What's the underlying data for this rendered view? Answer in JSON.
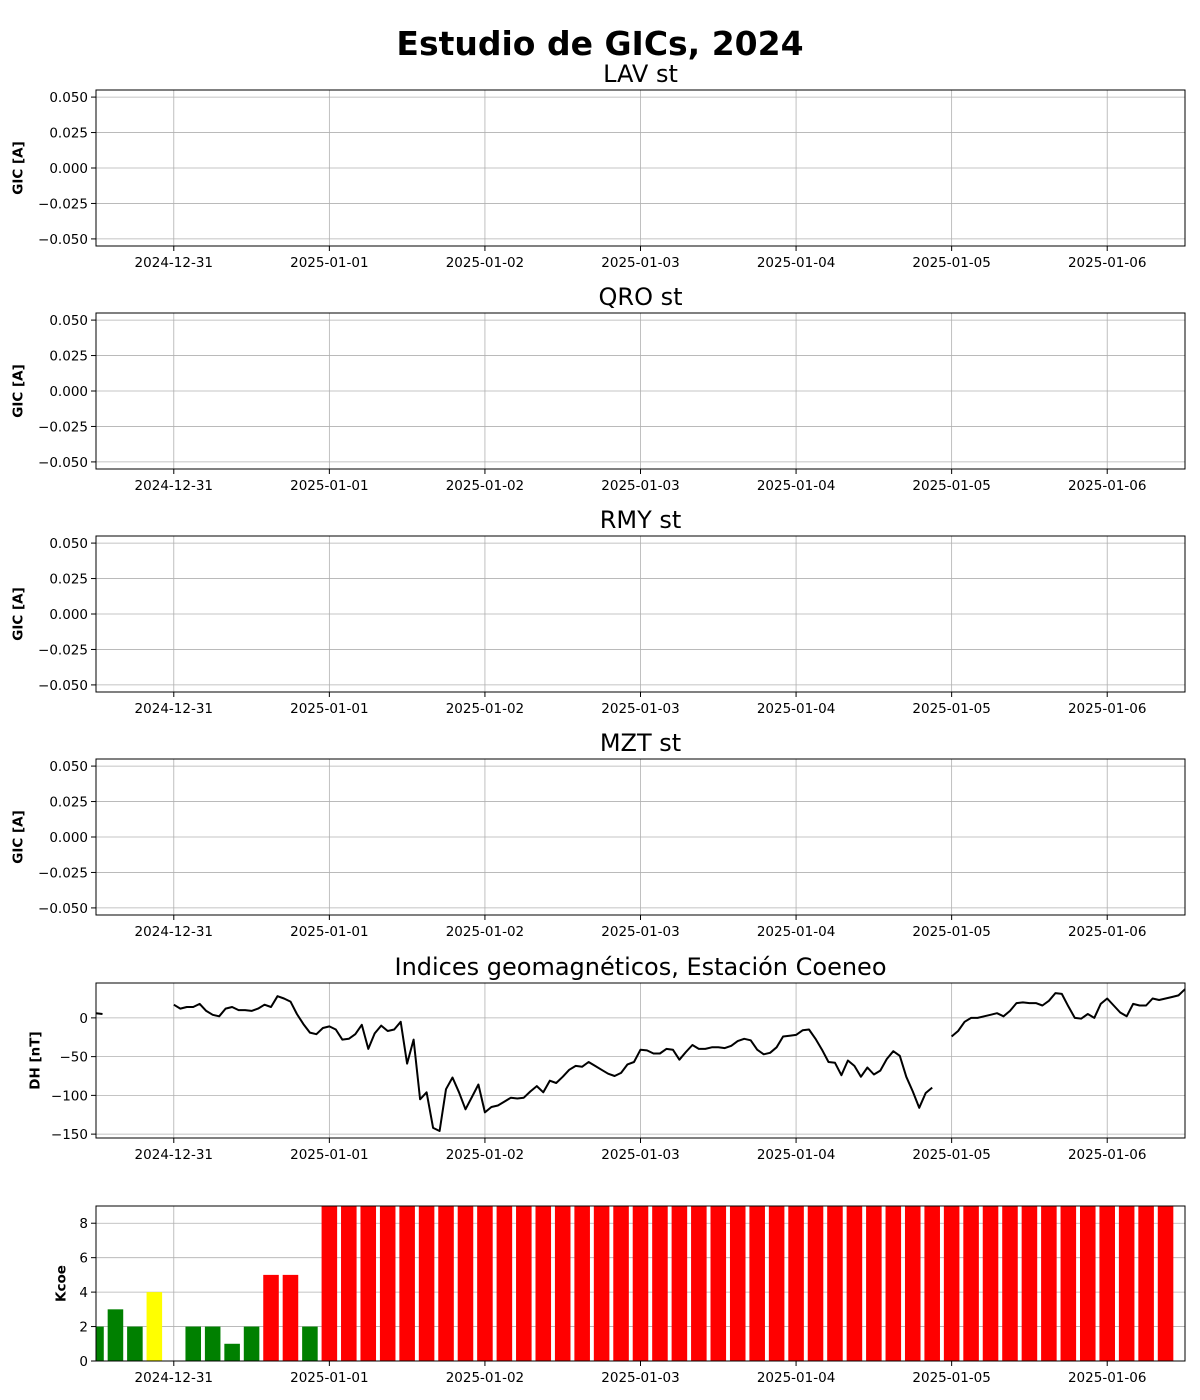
{
  "figure": {
    "suptitle": "Estudio de GICs, 2024"
  },
  "chart_data": [
    {
      "type": "line",
      "title": "LAV st",
      "ylabel": "GIC [A]",
      "xlabel": "",
      "x_ticks": [
        "2024-12-31",
        "2025-01-01",
        "2025-01-02",
        "2025-01-03",
        "2025-01-04",
        "2025-01-05",
        "2025-01-06"
      ],
      "xlim": [
        "2024-12-30 12:00",
        "2025-01-06 12:00"
      ],
      "y_ticks": [
        "0.050",
        "0.025",
        "0.000",
        "−0.025",
        "−0.050"
      ],
      "ylim": [
        -0.055,
        0.055
      ],
      "grid": true,
      "series": []
    },
    {
      "type": "line",
      "title": "QRO st",
      "ylabel": "GIC [A]",
      "xlabel": "",
      "x_ticks": [
        "2024-12-31",
        "2025-01-01",
        "2025-01-02",
        "2025-01-03",
        "2025-01-04",
        "2025-01-05",
        "2025-01-06"
      ],
      "xlim": [
        "2024-12-30 12:00",
        "2025-01-06 12:00"
      ],
      "y_ticks": [
        "0.050",
        "0.025",
        "0.000",
        "−0.025",
        "−0.050"
      ],
      "ylim": [
        -0.055,
        0.055
      ],
      "grid": true,
      "series": []
    },
    {
      "type": "line",
      "title": "RMY st",
      "ylabel": "GIC [A]",
      "xlabel": "",
      "x_ticks": [
        "2024-12-31",
        "2025-01-01",
        "2025-01-02",
        "2025-01-03",
        "2025-01-04",
        "2025-01-05",
        "2025-01-06"
      ],
      "xlim": [
        "2024-12-30 12:00",
        "2025-01-06 12:00"
      ],
      "y_ticks": [
        "0.050",
        "0.025",
        "0.000",
        "−0.025",
        "−0.050"
      ],
      "ylim": [
        -0.055,
        0.055
      ],
      "grid": true,
      "series": []
    },
    {
      "type": "line",
      "title": "MZT st",
      "ylabel": "GIC [A]",
      "xlabel": "",
      "x_ticks": [
        "2024-12-31",
        "2025-01-01",
        "2025-01-02",
        "2025-01-03",
        "2025-01-04",
        "2025-01-05",
        "2025-01-06"
      ],
      "xlim": [
        "2024-12-30 12:00",
        "2025-01-06 12:00"
      ],
      "y_ticks": [
        "0.050",
        "0.025",
        "0.000",
        "−0.025",
        "−0.050"
      ],
      "ylim": [
        -0.055,
        0.055
      ],
      "grid": true,
      "series": []
    },
    {
      "type": "line",
      "title": "Indices geomagnéticos, Estación Coeneo",
      "ylabel": "DH [nT]",
      "xlabel": "",
      "x_ticks": [
        "2024-12-31",
        "2025-01-01",
        "2025-01-02",
        "2025-01-03",
        "2025-01-04",
        "2025-01-05",
        "2025-01-06"
      ],
      "xlim": [
        "2024-12-30 12:00",
        "2025-01-06 12:00"
      ],
      "y_ticks": [
        "0",
        "−50",
        "−100",
        "−150"
      ],
      "ylim": [
        -155,
        45
      ],
      "grid": true,
      "color": "#000000",
      "series": [
        {
          "segments": [
            [
              [
                "2024-12-30 12:00",
                6
              ],
              [
                "2024-12-30 13:00",
                5
              ]
            ],
            [
              [
                "2024-12-31 00:00",
                17
              ],
              [
                "2024-12-31 01:00",
                12
              ],
              [
                "2024-12-31 02:00",
                14
              ],
              [
                "2024-12-31 03:00",
                14
              ],
              [
                "2024-12-31 04:00",
                18
              ],
              [
                "2024-12-31 05:00",
                9
              ],
              [
                "2024-12-31 06:00",
                4
              ],
              [
                "2024-12-31 07:00",
                2
              ],
              [
                "2024-12-31 08:00",
                12
              ],
              [
                "2024-12-31 09:00",
                14
              ],
              [
                "2024-12-31 10:00",
                10
              ],
              [
                "2024-12-31 11:00",
                10
              ],
              [
                "2024-12-31 12:00",
                9
              ],
              [
                "2024-12-31 13:00",
                12
              ],
              [
                "2024-12-31 14:00",
                17
              ],
              [
                "2024-12-31 15:00",
                14
              ],
              [
                "2024-12-31 16:00",
                28
              ],
              [
                "2024-12-31 17:00",
                25
              ],
              [
                "2024-12-31 18:00",
                21
              ],
              [
                "2024-12-31 19:00",
                5
              ],
              [
                "2024-12-31 20:00",
                -8
              ],
              [
                "2024-12-31 21:00",
                -19
              ],
              [
                "2024-12-31 22:00",
                -21
              ],
              [
                "2024-12-31 23:00",
                -13
              ],
              [
                "2025-01-01 00:00",
                -11
              ],
              [
                "2025-01-01 01:00",
                -15
              ],
              [
                "2025-01-01 02:00",
                -28
              ],
              [
                "2025-01-01 03:00",
                -27
              ],
              [
                "2025-01-01 04:00",
                -21
              ],
              [
                "2025-01-01 05:00",
                -9
              ],
              [
                "2025-01-01 06:00",
                -40
              ],
              [
                "2025-01-01 07:00",
                -20
              ],
              [
                "2025-01-01 08:00",
                -10
              ],
              [
                "2025-01-01 09:00",
                -17
              ],
              [
                "2025-01-01 10:00",
                -15
              ],
              [
                "2025-01-01 11:00",
                -5
              ],
              [
                "2025-01-01 12:00",
                -59
              ],
              [
                "2025-01-01 13:00",
                -28
              ],
              [
                "2025-01-01 14:00",
                -105
              ],
              [
                "2025-01-01 15:00",
                -96
              ],
              [
                "2025-01-01 16:00",
                -142
              ],
              [
                "2025-01-01 17:00",
                -146
              ],
              [
                "2025-01-01 18:00",
                -92
              ],
              [
                "2025-01-01 19:00",
                -77
              ],
              [
                "2025-01-01 20:00",
                -96
              ],
              [
                "2025-01-01 21:00",
                -118
              ],
              [
                "2025-01-01 22:00",
                -102
              ],
              [
                "2025-01-01 23:00",
                -86
              ],
              [
                "2025-01-02 00:00",
                -122
              ],
              [
                "2025-01-02 01:00",
                -115
              ],
              [
                "2025-01-02 02:00",
                -113
              ],
              [
                "2025-01-02 03:00",
                -108
              ],
              [
                "2025-01-02 04:00",
                -103
              ],
              [
                "2025-01-02 05:00",
                -104
              ],
              [
                "2025-01-02 06:00",
                -103
              ],
              [
                "2025-01-02 07:00",
                -95
              ],
              [
                "2025-01-02 08:00",
                -88
              ],
              [
                "2025-01-02 09:00",
                -96
              ],
              [
                "2025-01-02 10:00",
                -81
              ],
              [
                "2025-01-02 11:00",
                -84
              ],
              [
                "2025-01-02 12:00",
                -76
              ],
              [
                "2025-01-02 13:00",
                -67
              ],
              [
                "2025-01-02 14:00",
                -62
              ],
              [
                "2025-01-02 15:00",
                -63
              ],
              [
                "2025-01-02 16:00",
                -57
              ],
              [
                "2025-01-02 17:00",
                -62
              ],
              [
                "2025-01-02 18:00",
                -67
              ],
              [
                "2025-01-02 19:00",
                -72
              ],
              [
                "2025-01-02 20:00",
                -75
              ],
              [
                "2025-01-02 21:00",
                -71
              ],
              [
                "2025-01-02 22:00",
                -60
              ],
              [
                "2025-01-02 23:00",
                -57
              ],
              [
                "2025-01-03 00:00",
                -41
              ],
              [
                "2025-01-03 01:00",
                -42
              ],
              [
                "2025-01-03 02:00",
                -46
              ],
              [
                "2025-01-03 03:00",
                -46
              ],
              [
                "2025-01-03 04:00",
                -40
              ],
              [
                "2025-01-03 05:00",
                -41
              ],
              [
                "2025-01-03 06:00",
                -54
              ],
              [
                "2025-01-03 07:00",
                -44
              ],
              [
                "2025-01-03 08:00",
                -35
              ],
              [
                "2025-01-03 09:00",
                -40
              ],
              [
                "2025-01-03 10:00",
                -40
              ],
              [
                "2025-01-03 11:00",
                -38
              ],
              [
                "2025-01-03 12:00",
                -38
              ],
              [
                "2025-01-03 13:00",
                -39
              ],
              [
                "2025-01-03 14:00",
                -36
              ],
              [
                "2025-01-03 15:00",
                -30
              ],
              [
                "2025-01-03 16:00",
                -27
              ],
              [
                "2025-01-03 17:00",
                -29
              ],
              [
                "2025-01-03 18:00",
                -41
              ],
              [
                "2025-01-03 19:00",
                -47
              ],
              [
                "2025-01-03 20:00",
                -45
              ],
              [
                "2025-01-03 21:00",
                -38
              ],
              [
                "2025-01-03 22:00",
                -24
              ],
              [
                "2025-01-03 23:00",
                -23
              ],
              [
                "2025-01-04 00:00",
                -22
              ],
              [
                "2025-01-04 01:00",
                -16
              ],
              [
                "2025-01-04 02:00",
                -15
              ],
              [
                "2025-01-04 03:00",
                -27
              ],
              [
                "2025-01-04 04:00",
                -41
              ],
              [
                "2025-01-04 05:00",
                -57
              ],
              [
                "2025-01-04 06:00",
                -58
              ],
              [
                "2025-01-04 07:00",
                -74
              ],
              [
                "2025-01-04 08:00",
                -55
              ],
              [
                "2025-01-04 09:00",
                -62
              ],
              [
                "2025-01-04 10:00",
                -76
              ],
              [
                "2025-01-04 11:00",
                -64
              ],
              [
                "2025-01-04 12:00",
                -73
              ],
              [
                "2025-01-04 13:00",
                -68
              ],
              [
                "2025-01-04 14:00",
                -53
              ],
              [
                "2025-01-04 15:00",
                -43
              ],
              [
                "2025-01-04 16:00",
                -49
              ],
              [
                "2025-01-04 17:00",
                -76
              ],
              [
                "2025-01-04 18:00",
                -95
              ],
              [
                "2025-01-04 19:00",
                -116
              ],
              [
                "2025-01-04 20:00",
                -97
              ],
              [
                "2025-01-04 21:00",
                -90
              ]
            ],
            [
              [
                "2025-01-05 00:00",
                -24
              ],
              [
                "2025-01-05 01:00",
                -17
              ],
              [
                "2025-01-05 02:00",
                -5
              ],
              [
                "2025-01-05 03:00",
                0
              ],
              [
                "2025-01-05 04:00",
                0
              ],
              [
                "2025-01-05 05:00",
                2
              ],
              [
                "2025-01-05 06:00",
                4
              ],
              [
                "2025-01-05 07:00",
                6
              ],
              [
                "2025-01-05 08:00",
                2
              ],
              [
                "2025-01-05 09:00",
                9
              ],
              [
                "2025-01-05 10:00",
                19
              ],
              [
                "2025-01-05 11:00",
                20
              ],
              [
                "2025-01-05 12:00",
                19
              ],
              [
                "2025-01-05 13:00",
                19
              ],
              [
                "2025-01-05 14:00",
                16
              ],
              [
                "2025-01-05 15:00",
                22
              ],
              [
                "2025-01-05 16:00",
                32
              ],
              [
                "2025-01-05 17:00",
                31
              ],
              [
                "2025-01-05 18:00",
                15
              ],
              [
                "2025-01-05 19:00",
                0
              ],
              [
                "2025-01-05 20:00",
                -1
              ],
              [
                "2025-01-05 21:00",
                5
              ],
              [
                "2025-01-05 22:00",
                0
              ],
              [
                "2025-01-05 23:00",
                18
              ],
              [
                "2025-01-06 00:00",
                25
              ],
              [
                "2025-01-06 01:00",
                16
              ],
              [
                "2025-01-06 02:00",
                7
              ],
              [
                "2025-01-06 03:00",
                2
              ],
              [
                "2025-01-06 04:00",
                18
              ],
              [
                "2025-01-06 05:00",
                16
              ],
              [
                "2025-01-06 06:00",
                16
              ],
              [
                "2025-01-06 07:00",
                25
              ],
              [
                "2025-01-06 08:00",
                23
              ],
              [
                "2025-01-06 09:00",
                25
              ],
              [
                "2025-01-06 10:00",
                27
              ],
              [
                "2025-01-06 11:00",
                29
              ],
              [
                "2025-01-06 12:00",
                37
              ]
            ]
          ]
        }
      ]
    },
    {
      "type": "bar",
      "title": "",
      "ylabel": "Kcoe",
      "xlabel": "",
      "x_ticks": [
        "2024-12-31",
        "2025-01-01",
        "2025-01-02",
        "2025-01-03",
        "2025-01-04",
        "2025-01-05",
        "2025-01-06"
      ],
      "xlim": [
        "2024-12-30 12:00",
        "2025-01-06 12:00"
      ],
      "y_ticks": [
        "8",
        "6",
        "4",
        "2",
        "0"
      ],
      "ylim": [
        0,
        9
      ],
      "grid": true,
      "colors": {
        "quiet": "#008000",
        "moderate": "#ffff00",
        "storm": "#ff0000"
      },
      "first_bar": "2024-12-30 12:00",
      "bar_interval_hours": 3,
      "values": [
        2,
        3,
        2,
        4,
        0,
        2,
        2,
        1,
        2,
        5,
        5,
        2,
        9,
        9,
        9,
        9,
        9,
        9,
        9,
        9,
        9,
        9,
        9,
        9,
        9,
        9,
        9,
        9,
        9,
        9,
        9,
        9,
        9,
        9,
        9,
        9,
        9,
        9,
        9,
        9,
        9,
        9,
        9,
        9,
        9,
        9,
        9,
        9,
        9,
        9,
        9,
        9,
        9,
        9,
        9,
        9
      ],
      "bar_colors": [
        "quiet",
        "quiet",
        "quiet",
        "moderate",
        "quiet",
        "quiet",
        "quiet",
        "quiet",
        "quiet",
        "storm",
        "storm",
        "quiet",
        "storm",
        "storm",
        "storm",
        "storm",
        "storm",
        "storm",
        "storm",
        "storm",
        "storm",
        "storm",
        "storm",
        "storm",
        "storm",
        "storm",
        "storm",
        "storm",
        "storm",
        "storm",
        "storm",
        "storm",
        "storm",
        "storm",
        "storm",
        "storm",
        "storm",
        "storm",
        "storm",
        "storm",
        "storm",
        "storm",
        "storm",
        "storm",
        "storm",
        "storm",
        "storm",
        "storm",
        "storm",
        "storm",
        "storm",
        "storm",
        "storm",
        "storm",
        "storm",
        "storm"
      ]
    }
  ]
}
